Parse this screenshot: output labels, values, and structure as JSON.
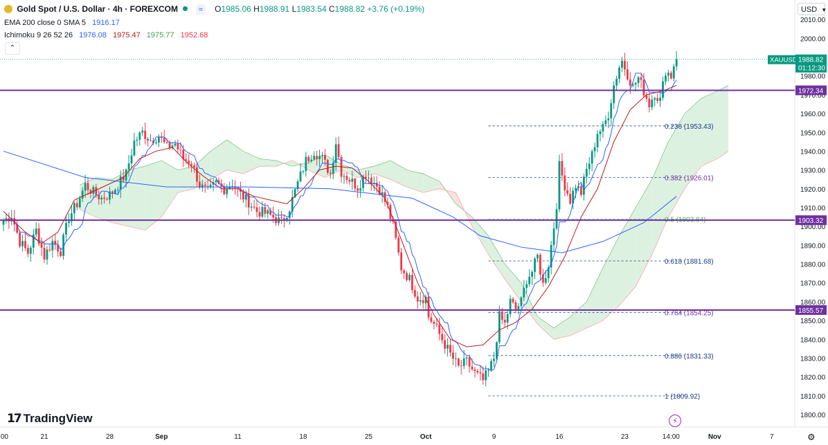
{
  "header": {
    "symbol_title": "Gold Spot / U.S. Dollar · 4h · FOREXCOM",
    "compare_badge": "≈",
    "ohlc": {
      "open_label": "O",
      "open": "1985.06",
      "high_label": "H",
      "high": "1988.91",
      "low_label": "L",
      "low": "1983.54",
      "close_label": "C",
      "close": "1988.82",
      "change": "+3.76 (+0.19%)"
    },
    "indicators": [
      {
        "label": "EMA 200 close 0 SMA 5",
        "values": [
          {
            "text": "1916.17",
            "color": "#2962ff"
          }
        ]
      },
      {
        "label": "Ichimoku 9 26 52 26",
        "values": [
          {
            "text": "1976.08",
            "color": "#2962ff"
          },
          {
            "text": "1975.47",
            "color": "#b71c1c"
          },
          {
            "text": "1975.77",
            "color": "#43a047"
          },
          {
            "text": "1952.68",
            "color": "#f23645"
          }
        ]
      }
    ],
    "collapse_icon": "chevron-up-icon"
  },
  "currency_selector": "USD",
  "brand": {
    "logo_glyph": "17",
    "name": "TradingView"
  },
  "colors": {
    "up": "#089981",
    "down": "#f23645",
    "level": "#7030a0",
    "fib": "#1e3a8a",
    "ema": "#2962ff",
    "kijun": "#b71c1c",
    "cloud_up": "#d7eedc",
    "cloud_down": "#fbdcdc"
  },
  "chart_data": {
    "type": "candlestick",
    "ylim": [
      1797,
      2015
    ],
    "y_ticks": [
      1800,
      1810,
      1820,
      1830,
      1840,
      1850,
      1860,
      1870,
      1880,
      1890,
      1900,
      1910,
      1920,
      1930,
      1940,
      1950,
      1960,
      1970,
      1980,
      1990,
      2000,
      2010
    ],
    "x_ticks": [
      {
        "label": ":00",
        "index": 0
      },
      {
        "label": "21",
        "index": 15
      },
      {
        "label": "28",
        "index": 39
      },
      {
        "label": "Sep",
        "index": 58
      },
      {
        "label": "11",
        "index": 86
      },
      {
        "label": "18",
        "index": 110
      },
      {
        "label": "25",
        "index": 134
      },
      {
        "label": "Oct",
        "index": 155
      },
      {
        "label": "9",
        "index": 180
      },
      {
        "label": "16",
        "index": 204
      },
      {
        "label": "23",
        "index": 228
      },
      {
        "label": "14:00",
        "index": 245
      },
      {
        "label": "Nov",
        "index": 261
      },
      {
        "label": "7",
        "index": 282
      }
    ],
    "horizontal_levels": [
      {
        "value": 1972.34,
        "label": "1972.34"
      },
      {
        "value": 1903.32,
        "label": "1903.32"
      },
      {
        "value": 1855.57,
        "label": "1855.57"
      }
    ],
    "last_price": {
      "symbol": "XAUUSD",
      "price": "1988.82",
      "countdown": "01:12:30",
      "value": 1988.82
    },
    "fibonacci": {
      "start_index": 178,
      "end_index": 250,
      "levels": [
        {
          "value": 1953.43,
          "label": "0.236 (1953.43)"
        },
        {
          "value": 1926.01,
          "label": "0.382 (1926.01)"
        },
        {
          "value": 1903.84,
          "label": "0.5 (1903.84)"
        },
        {
          "value": 1881.68,
          "label": "0.618 (1881.68)"
        },
        {
          "value": 1854.25,
          "label": "0.764 (1854.25)"
        },
        {
          "value": 1831.33,
          "label": "0.886 (1831.33)"
        },
        {
          "value": 1809.92,
          "label": "1 (1809.92)"
        }
      ]
    },
    "anchors": [
      [
        0,
        1903
      ],
      [
        3,
        1906
      ],
      [
        6,
        1892
      ],
      [
        9,
        1886
      ],
      [
        12,
        1898
      ],
      [
        15,
        1884
      ],
      [
        18,
        1892
      ],
      [
        21,
        1887
      ],
      [
        24,
        1905
      ],
      [
        27,
        1912
      ],
      [
        30,
        1922
      ],
      [
        33,
        1918
      ],
      [
        36,
        1915
      ],
      [
        39,
        1917
      ],
      [
        42,
        1922
      ],
      [
        45,
        1928
      ],
      [
        48,
        1945
      ],
      [
        51,
        1950
      ],
      [
        54,
        1946
      ],
      [
        57,
        1948
      ],
      [
        60,
        1942
      ],
      [
        63,
        1944
      ],
      [
        66,
        1936
      ],
      [
        69,
        1934
      ],
      [
        72,
        1922
      ],
      [
        75,
        1918
      ],
      [
        78,
        1923
      ],
      [
        81,
        1920
      ],
      [
        84,
        1923
      ],
      [
        87,
        1917
      ],
      [
        90,
        1913
      ],
      [
        93,
        1908
      ],
      [
        96,
        1907
      ],
      [
        99,
        1905
      ],
      [
        102,
        1902
      ],
      [
        105,
        1910
      ],
      [
        108,
        1923
      ],
      [
        111,
        1935
      ],
      [
        114,
        1940
      ],
      [
        117,
        1936
      ],
      [
        120,
        1928
      ],
      [
        122,
        1945
      ],
      [
        124,
        1929
      ],
      [
        127,
        1925
      ],
      [
        130,
        1921
      ],
      [
        133,
        1928
      ],
      [
        135,
        1925
      ],
      [
        138,
        1920
      ],
      [
        141,
        1910
      ],
      [
        143,
        1900
      ],
      [
        146,
        1878
      ],
      [
        149,
        1872
      ],
      [
        152,
        1862
      ],
      [
        155,
        1862
      ],
      [
        156,
        1852
      ],
      [
        158,
        1848
      ],
      [
        161,
        1840
      ],
      [
        164,
        1832
      ],
      [
        167,
        1825
      ],
      [
        170,
        1828
      ],
      [
        173,
        1822
      ],
      [
        176,
        1818
      ],
      [
        178,
        1823
      ],
      [
        180,
        1830
      ],
      [
        182,
        1852
      ],
      [
        184,
        1848
      ],
      [
        186,
        1860
      ],
      [
        188,
        1856
      ],
      [
        190,
        1860
      ],
      [
        192,
        1872
      ],
      [
        194,
        1876
      ],
      [
        196,
        1884
      ],
      [
        198,
        1869
      ],
      [
        200,
        1880
      ],
      [
        202,
        1900
      ],
      [
        203,
        1912
      ],
      [
        204,
        1932
      ],
      [
        206,
        1922
      ],
      [
        208,
        1914
      ],
      [
        210,
        1922
      ],
      [
        212,
        1918
      ],
      [
        214,
        1930
      ],
      [
        216,
        1938
      ],
      [
        218,
        1950
      ],
      [
        220,
        1952
      ],
      [
        222,
        1960
      ],
      [
        224,
        1975
      ],
      [
        226,
        1985
      ],
      [
        227,
        1988
      ],
      [
        229,
        1981
      ],
      [
        231,
        1974
      ],
      [
        233,
        1979
      ],
      [
        235,
        1972
      ],
      [
        237,
        1965
      ],
      [
        239,
        1971
      ],
      [
        241,
        1967
      ],
      [
        243,
        1983
      ],
      [
        245,
        1980
      ],
      [
        246,
        1986
      ],
      [
        247,
        1988.82
      ]
    ],
    "ema200": [
      [
        0,
        1940
      ],
      [
        30,
        1926
      ],
      [
        60,
        1921
      ],
      [
        90,
        1921
      ],
      [
        120,
        1920
      ],
      [
        150,
        1915
      ],
      [
        165,
        1905
      ],
      [
        175,
        1895
      ],
      [
        190,
        1889
      ],
      [
        205,
        1886
      ],
      [
        220,
        1892
      ],
      [
        235,
        1902
      ],
      [
        247,
        1916
      ]
    ],
    "kijun": [
      [
        0,
        1908
      ],
      [
        8,
        1897
      ],
      [
        14,
        1891
      ],
      [
        20,
        1897
      ],
      [
        26,
        1914
      ],
      [
        32,
        1918
      ],
      [
        38,
        1922
      ],
      [
        44,
        1926
      ],
      [
        50,
        1936
      ],
      [
        56,
        1940
      ],
      [
        62,
        1942
      ],
      [
        68,
        1933
      ],
      [
        74,
        1926
      ],
      [
        80,
        1920
      ],
      [
        86,
        1920
      ],
      [
        92,
        1916
      ],
      [
        98,
        1914
      ],
      [
        104,
        1912
      ],
      [
        110,
        1920
      ],
      [
        116,
        1930
      ],
      [
        122,
        1932
      ],
      [
        128,
        1931
      ],
      [
        134,
        1924
      ],
      [
        140,
        1915
      ],
      [
        146,
        1893
      ],
      [
        152,
        1870
      ],
      [
        158,
        1853
      ],
      [
        164,
        1840
      ],
      [
        170,
        1836
      ],
      [
        176,
        1837
      ],
      [
        182,
        1845
      ],
      [
        188,
        1849
      ],
      [
        194,
        1856
      ],
      [
        200,
        1868
      ],
      [
        206,
        1884
      ],
      [
        212,
        1905
      ],
      [
        218,
        1920
      ],
      [
        224,
        1945
      ],
      [
        230,
        1962
      ],
      [
        236,
        1970
      ],
      [
        242,
        1972
      ],
      [
        247,
        1975
      ]
    ],
    "cloud": [
      [
        28,
        1909,
        1922
      ],
      [
        34,
        1905,
        1926
      ],
      [
        40,
        1902,
        1925
      ],
      [
        46,
        1900,
        1930
      ],
      [
        52,
        1898,
        1932
      ],
      [
        58,
        1905,
        1935
      ],
      [
        64,
        1918,
        1930
      ],
      [
        70,
        1920,
        1932
      ],
      [
        76,
        1925,
        1940
      ],
      [
        82,
        1930,
        1946
      ],
      [
        88,
        1928,
        1940
      ],
      [
        94,
        1932,
        1936
      ],
      [
        100,
        1932,
        1935
      ],
      [
        106,
        1935,
        1932
      ],
      [
        112,
        1930,
        1934
      ],
      [
        118,
        1926,
        1938
      ],
      [
        124,
        1930,
        1933
      ],
      [
        130,
        1926,
        1930
      ],
      [
        136,
        1928,
        1932
      ],
      [
        142,
        1925,
        1935
      ],
      [
        148,
        1921,
        1930
      ],
      [
        154,
        1918,
        1928
      ],
      [
        160,
        1920,
        1924
      ],
      [
        166,
        1918,
        1912
      ],
      [
        172,
        1900,
        1905
      ],
      [
        178,
        1885,
        1895
      ],
      [
        184,
        1872,
        1880
      ],
      [
        190,
        1860,
        1870
      ],
      [
        196,
        1848,
        1852
      ],
      [
        202,
        1840,
        1846
      ],
      [
        208,
        1842,
        1852
      ],
      [
        214,
        1846,
        1860
      ],
      [
        220,
        1850,
        1878
      ],
      [
        226,
        1858,
        1895
      ],
      [
        232,
        1868,
        1910
      ],
      [
        238,
        1885,
        1925
      ],
      [
        244,
        1905,
        1945
      ],
      [
        250,
        1920,
        1960
      ],
      [
        256,
        1932,
        1968
      ],
      [
        262,
        1936,
        1972
      ],
      [
        266,
        1940,
        1975
      ]
    ]
  }
}
